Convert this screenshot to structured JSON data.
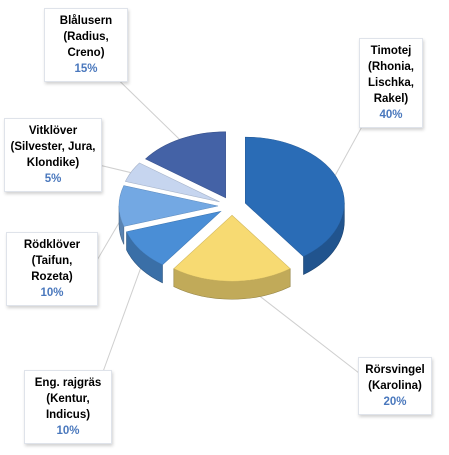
{
  "chart_data": {
    "type": "pie",
    "style": "3d-exploded",
    "title": "",
    "slices": [
      {
        "name": "Timotej",
        "detail": "(Rhonia,\nLischka,\nRakel)",
        "value": 40,
        "label": "40%",
        "color": "#2a6cb6"
      },
      {
        "name": "Rörsvingel",
        "detail": "(Karolina)",
        "value": 20,
        "label": "20%",
        "color": "#f7da72"
      },
      {
        "name": "Eng. rajgräs",
        "detail": "(Kentur, Indicus)",
        "value": 10,
        "label": "10%",
        "color": "#4a8ed6"
      },
      {
        "name": "Rödklöver",
        "detail": "(Taifun, Rozeta)",
        "value": 10,
        "label": "10%",
        "color": "#73a8e3"
      },
      {
        "name": "Vitklöver",
        "detail": "(Silvester, Jura,\nKlondike)",
        "value": 5,
        "label": "5%",
        "color": "#c6d5ef"
      },
      {
        "name": "Blålusern",
        "detail": "(Radius, Creno)",
        "value": 15,
        "label": "15%",
        "color": "#4462a6"
      }
    ],
    "legend": "none",
    "colors": {
      "percent_text": "#4a78bd",
      "leader_line": "#cfcfcf"
    }
  }
}
